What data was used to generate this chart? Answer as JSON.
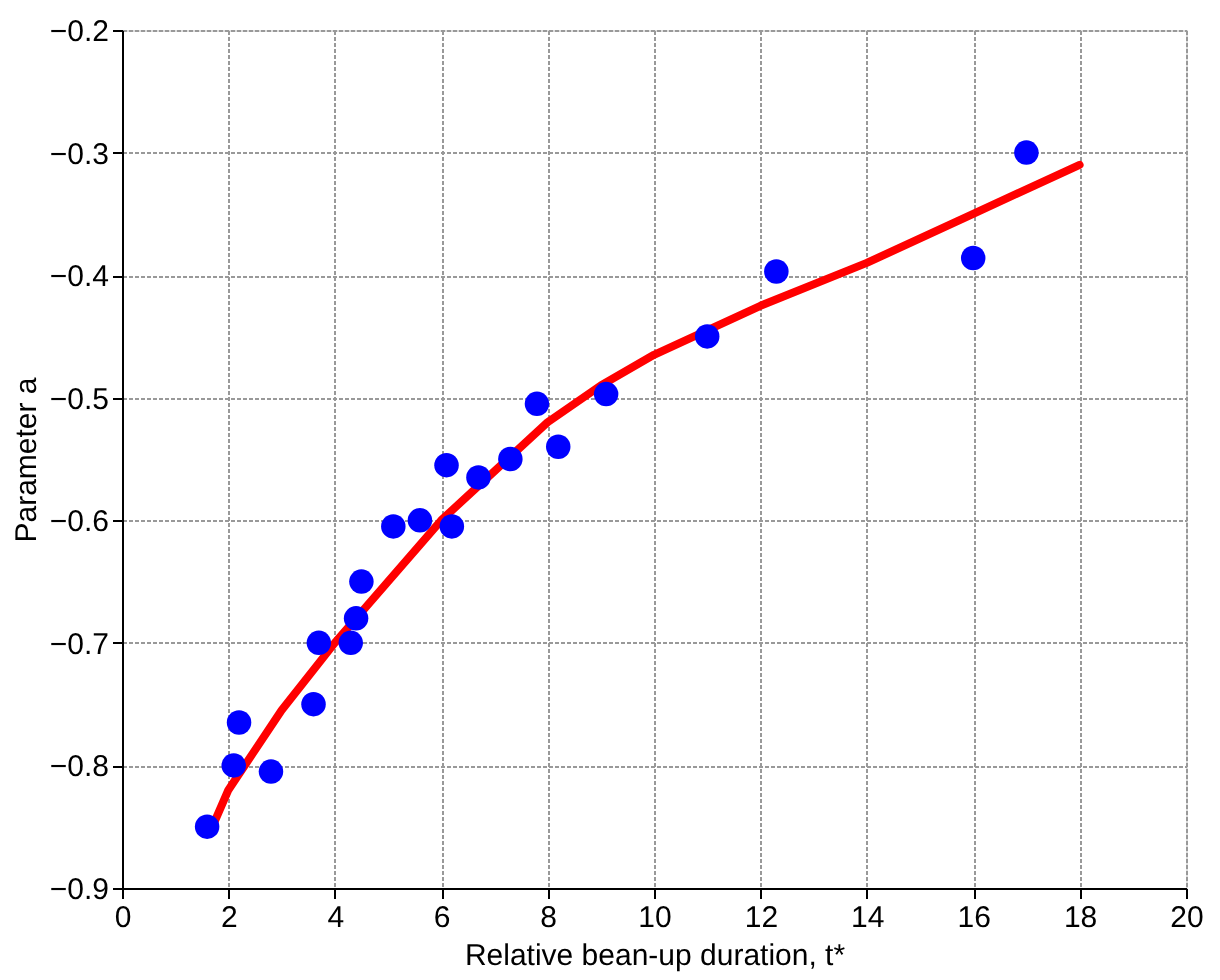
{
  "chart_data": {
    "type": "scatter",
    "xlabel": "Relative bean-up duration, t*",
    "ylabel": "Parameter a",
    "xlim": [
      0,
      20
    ],
    "xticks": [
      0,
      2,
      4,
      6,
      8,
      10,
      12,
      14,
      16,
      18,
      20
    ],
    "ylim": [
      -0.9,
      -0.2
    ],
    "yticks": [
      -0.9,
      -0.8,
      -0.7,
      -0.6,
      -0.5,
      -0.4,
      -0.3,
      -0.2
    ],
    "grid": true,
    "marker": "circle",
    "series": [
      {
        "type": "scatter",
        "color": "#0000ff",
        "x": [
          1.6,
          2.1,
          2.2,
          2.8,
          3.6,
          3.7,
          4.3,
          4.4,
          4.5,
          5.1,
          5.6,
          6.1,
          6.2,
          6.7,
          7.3,
          7.8,
          8.2,
          9.1,
          11.0,
          12.3,
          16.0,
          17.0
        ],
        "values": [
          -0.85,
          -0.8,
          -0.765,
          -0.805,
          -0.75,
          -0.7,
          -0.7,
          -0.68,
          -0.65,
          -0.605,
          -0.6,
          -0.555,
          -0.605,
          -0.565,
          -0.55,
          -0.505,
          -0.54,
          -0.497,
          -0.45,
          -0.397,
          -0.386,
          -0.3
        ]
      },
      {
        "type": "line",
        "color": "#ff0000",
        "line_style": "solid",
        "marker": "none",
        "x": [
          1.7,
          2,
          3,
          4,
          5,
          6,
          7,
          8,
          9,
          10,
          12,
          14,
          16,
          18
        ],
        "values": [
          -0.85,
          -0.82,
          -0.755,
          -0.7,
          -0.65,
          -0.6,
          -0.56,
          -0.52,
          -0.49,
          -0.465,
          -0.425,
          -0.39,
          -0.35,
          -0.31
        ]
      }
    ]
  }
}
